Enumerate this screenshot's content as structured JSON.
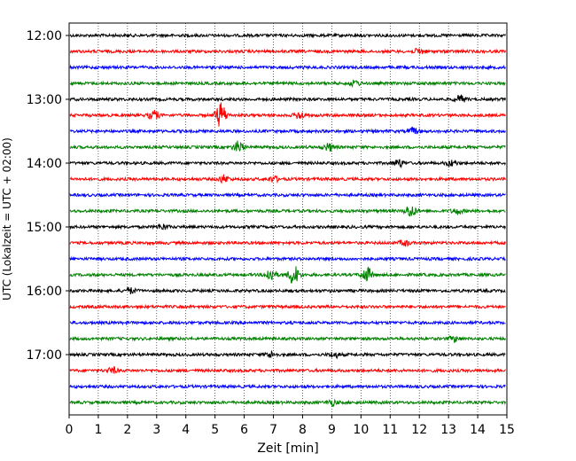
{
  "chart_data": {
    "type": "line",
    "title": "",
    "xlabel": "Zeit  [min]",
    "ylabel": "UTC (Lokalzeit = UTC + 02:00)",
    "x_ticks": [
      "0",
      "1",
      "2",
      "3",
      "4",
      "5",
      "6",
      "7",
      "8",
      "9",
      "10",
      "11",
      "12",
      "13",
      "14",
      "15"
    ],
    "xlim": [
      0,
      15
    ],
    "y_ticks": [
      "12:00",
      "13:00",
      "14:00",
      "15:00",
      "16:00",
      "17:00"
    ],
    "grid": "vertical dotted",
    "rows_per_hour": 4,
    "row_minutes": 15,
    "trace_color_cycle": [
      "#000000",
      "#ff0000",
      "#0000ff",
      "#008000"
    ],
    "traces": [
      {
        "start": "12:00",
        "color": "#000000",
        "events": []
      },
      {
        "start": "12:15",
        "color": "#ff0000",
        "events": [
          {
            "x": 12.0,
            "amp": 3
          }
        ]
      },
      {
        "start": "12:30",
        "color": "#0000ff",
        "events": []
      },
      {
        "start": "12:45",
        "color": "#008000",
        "events": [
          {
            "x": 9.8,
            "amp": 3
          }
        ]
      },
      {
        "start": "13:00",
        "color": "#000000",
        "events": [
          {
            "x": 13.4,
            "amp": 4
          }
        ]
      },
      {
        "start": "13:15",
        "color": "#ff0000",
        "events": [
          {
            "x": 2.9,
            "amp": 5
          },
          {
            "x": 5.2,
            "amp": 14
          },
          {
            "x": 7.9,
            "amp": 4
          }
        ]
      },
      {
        "start": "13:30",
        "color": "#0000ff",
        "events": [
          {
            "x": 11.8,
            "amp": 3
          }
        ]
      },
      {
        "start": "13:45",
        "color": "#008000",
        "events": [
          {
            "x": 5.8,
            "amp": 6
          },
          {
            "x": 8.9,
            "amp": 4
          }
        ]
      },
      {
        "start": "14:00",
        "color": "#000000",
        "events": [
          {
            "x": 11.3,
            "amp": 4
          },
          {
            "x": 13.1,
            "amp": 3
          }
        ]
      },
      {
        "start": "14:15",
        "color": "#ff0000",
        "events": [
          {
            "x": 5.3,
            "amp": 4
          },
          {
            "x": 7.0,
            "amp": 3
          }
        ]
      },
      {
        "start": "14:30",
        "color": "#0000ff",
        "events": []
      },
      {
        "start": "14:45",
        "color": "#008000",
        "events": [
          {
            "x": 11.7,
            "amp": 7
          },
          {
            "x": 13.3,
            "amp": 3
          }
        ]
      },
      {
        "start": "15:00",
        "color": "#000000",
        "events": [
          {
            "x": 3.2,
            "amp": 3
          }
        ]
      },
      {
        "start": "15:15",
        "color": "#ff0000",
        "events": [
          {
            "x": 11.5,
            "amp": 3
          }
        ]
      },
      {
        "start": "15:30",
        "color": "#0000ff",
        "events": []
      },
      {
        "start": "15:45",
        "color": "#008000",
        "events": [
          {
            "x": 6.9,
            "amp": 7
          },
          {
            "x": 7.7,
            "amp": 11
          },
          {
            "x": 10.2,
            "amp": 8
          }
        ]
      },
      {
        "start": "16:00",
        "color": "#000000",
        "events": [
          {
            "x": 2.1,
            "amp": 3
          }
        ]
      },
      {
        "start": "16:15",
        "color": "#ff0000",
        "events": []
      },
      {
        "start": "16:30",
        "color": "#0000ff",
        "events": []
      },
      {
        "start": "16:45",
        "color": "#008000",
        "events": [
          {
            "x": 13.2,
            "amp": 3
          }
        ]
      },
      {
        "start": "17:00",
        "color": "#000000",
        "events": [
          {
            "x": 6.9,
            "amp": 3
          },
          {
            "x": 9.1,
            "amp": 3
          }
        ]
      },
      {
        "start": "17:15",
        "color": "#ff0000",
        "events": [
          {
            "x": 1.5,
            "amp": 3
          }
        ]
      },
      {
        "start": "17:30",
        "color": "#0000ff",
        "events": []
      },
      {
        "start": "17:45",
        "color": "#008000",
        "events": [
          {
            "x": 9.0,
            "amp": 3
          }
        ]
      }
    ]
  }
}
